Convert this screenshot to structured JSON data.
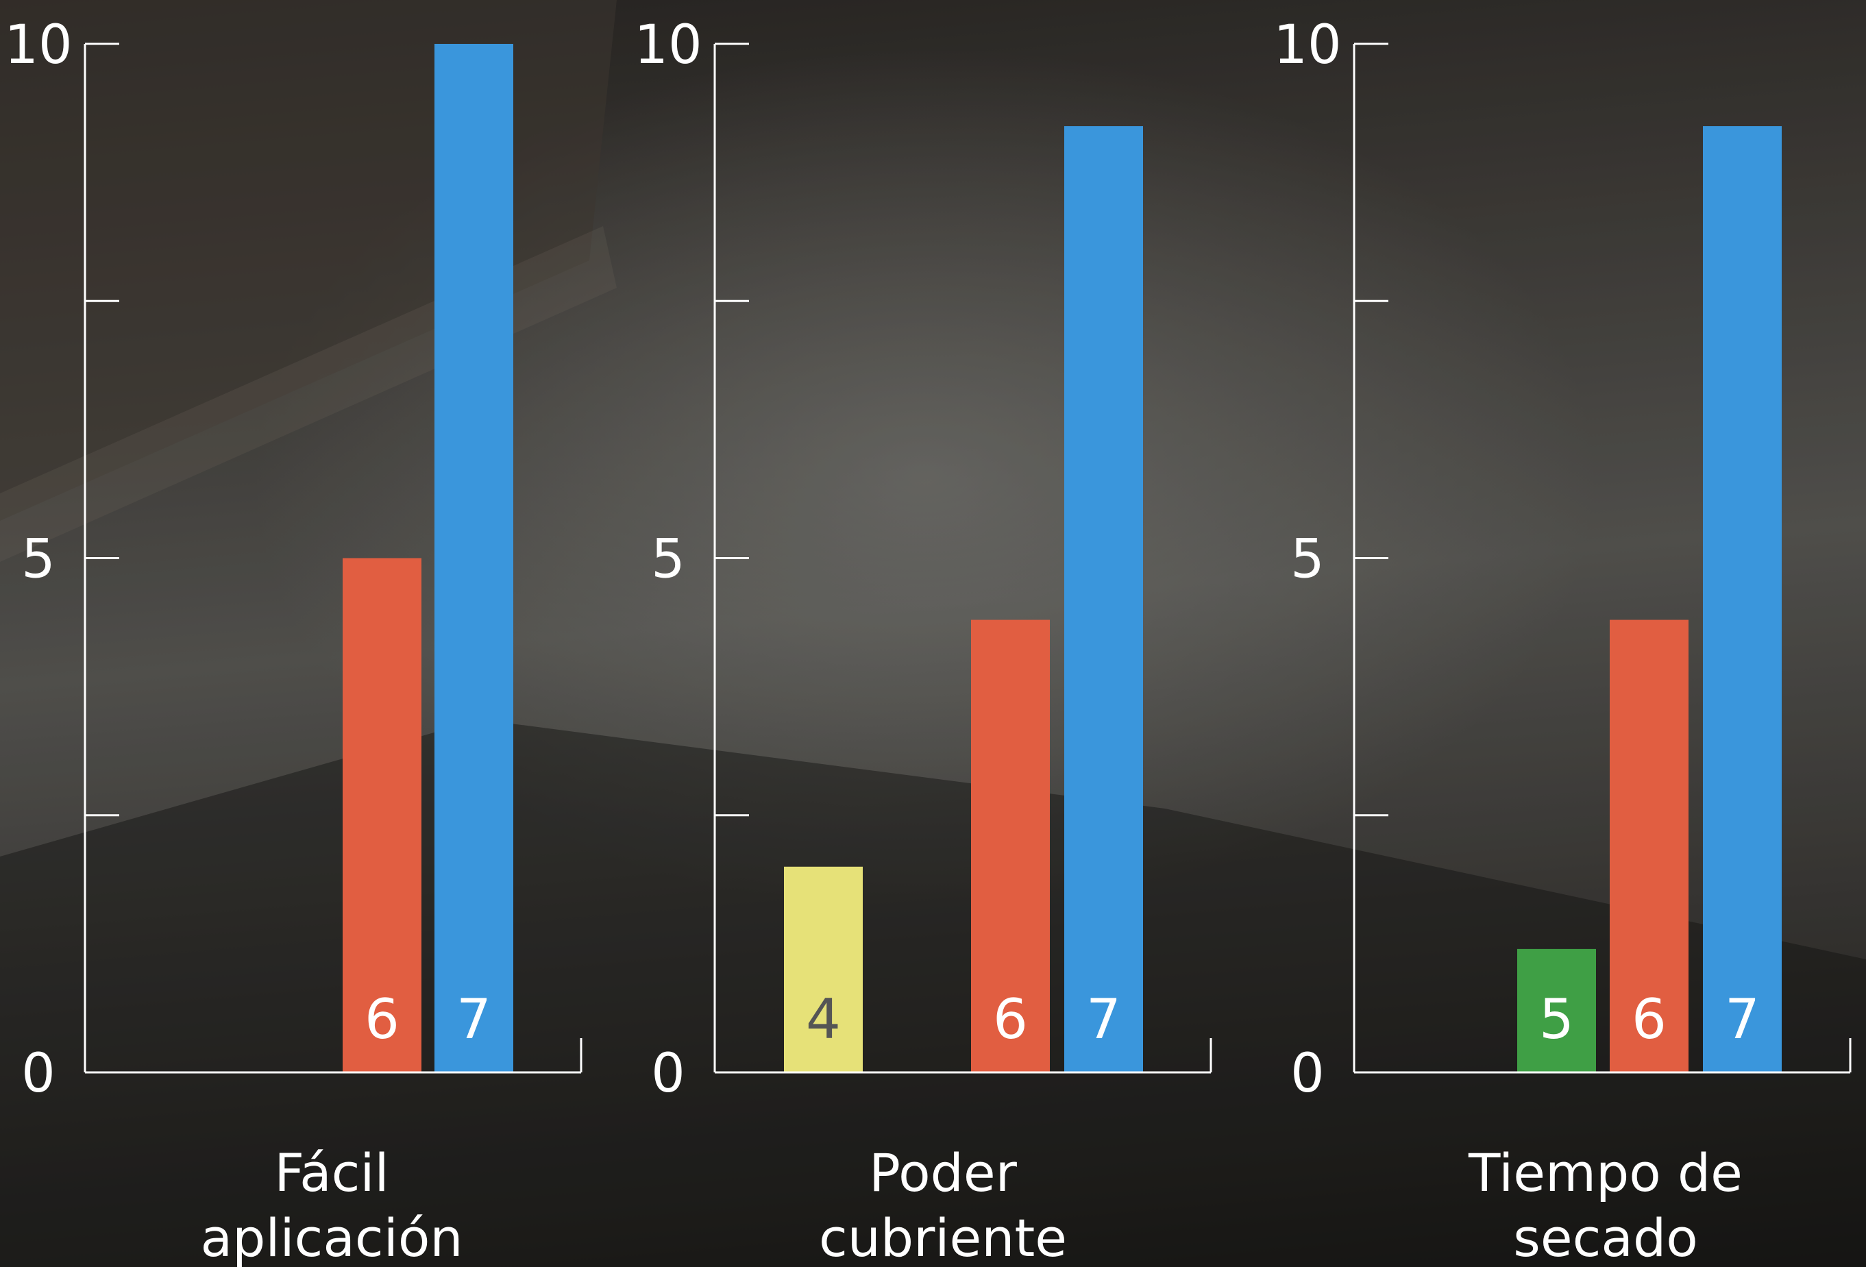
{
  "chart_data": [
    {
      "type": "bar",
      "category_label": [
        "Fácil",
        "aplicación"
      ],
      "yticks": [
        "0",
        "5",
        "10"
      ],
      "ylim": [
        0,
        10
      ],
      "bars": [
        {
          "label": "6",
          "value": 5.0,
          "color": "#e15e41",
          "label_color": "#ffffff"
        },
        {
          "label": "7",
          "value": 10.0,
          "color": "#3a96dc",
          "label_color": "#ffffff"
        }
      ]
    },
    {
      "type": "bar",
      "category_label": [
        "Poder",
        "cubriente"
      ],
      "yticks": [
        "0",
        "5",
        "10"
      ],
      "ylim": [
        0,
        10
      ],
      "bars": [
        {
          "label": "4",
          "value": 2.0,
          "color": "#e6e178",
          "label_color": "#555555"
        },
        {
          "label": "6",
          "value": 4.4,
          "color": "#e15e41",
          "label_color": "#ffffff"
        },
        {
          "label": "7",
          "value": 9.2,
          "color": "#3a96dc",
          "label_color": "#ffffff"
        }
      ]
    },
    {
      "type": "bar",
      "category_label": [
        "Tiempo de",
        "secado"
      ],
      "yticks": [
        "0",
        "5",
        "10"
      ],
      "ylim": [
        0,
        10
      ],
      "bars": [
        {
          "label": "5",
          "value": 1.2,
          "color": "#3f9f45",
          "label_color": "#ffffff"
        },
        {
          "label": "6",
          "value": 4.4,
          "color": "#e15e41",
          "label_color": "#ffffff"
        },
        {
          "label": "7",
          "value": 9.2,
          "color": "#3a96dc",
          "label_color": "#ffffff"
        }
      ]
    }
  ]
}
